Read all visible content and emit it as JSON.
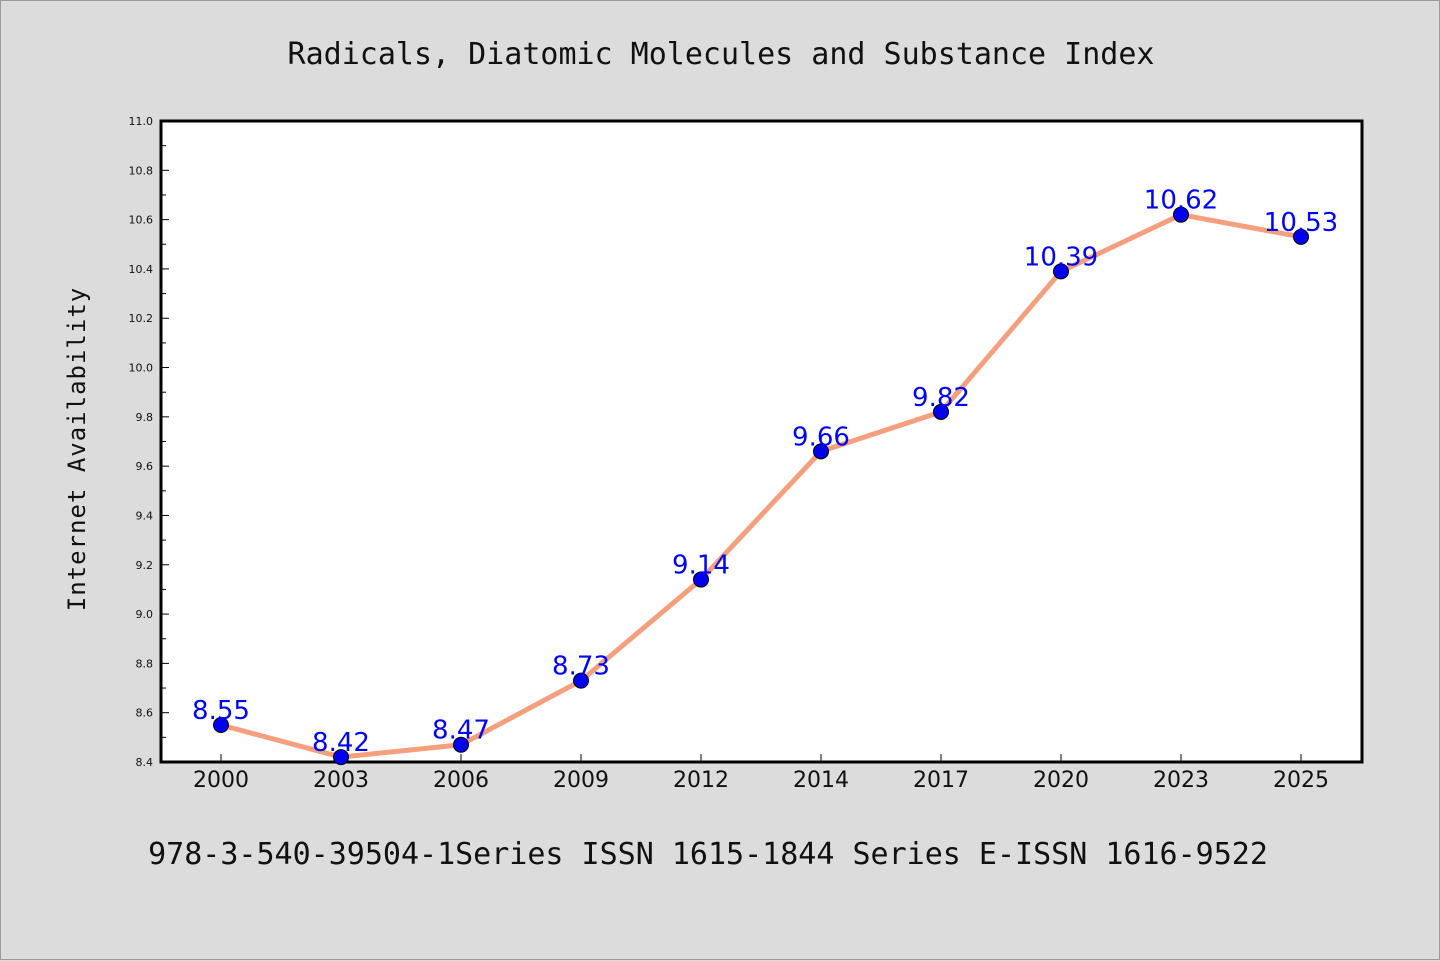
{
  "chart_data": {
    "type": "line",
    "title": "Radicals, Diatomic Molecules and Substance Index",
    "xlabel": "",
    "ylabel": "Internet Availability",
    "categories": [
      "2000",
      "2003",
      "2006",
      "2009",
      "2012",
      "2014",
      "2017",
      "2020",
      "2023",
      "2025"
    ],
    "series": [
      {
        "values": [
          8.55,
          8.42,
          8.47,
          8.73,
          9.14,
          9.66,
          9.82,
          10.39,
          10.62,
          10.53
        ],
        "labels": [
          "8.55",
          "8.42",
          "8.47",
          "8.73",
          "9.14",
          "9.66",
          "9.82",
          "10.39",
          "10.62",
          "10.53"
        ],
        "line_color": "#f4a07e",
        "marker_color": "#0000ee"
      }
    ],
    "ylim": [
      8.4,
      11.0
    ],
    "yticks": [
      "8.4",
      "8.6",
      "8.8",
      "9.0",
      "9.2",
      "9.4",
      "9.6",
      "9.8",
      "10.0",
      "10.2",
      "10.4",
      "10.6",
      "10.8",
      "11.0"
    ],
    "grid": false,
    "legend": "none"
  },
  "footer": {
    "text": "978-3-540-39504-1Series ISSN 1615-1844 Series E-ISSN 1616-9522"
  },
  "colors": {
    "background": "#dcdcdc",
    "plot_background": "#ffffff",
    "label_color": "#0000ff"
  }
}
